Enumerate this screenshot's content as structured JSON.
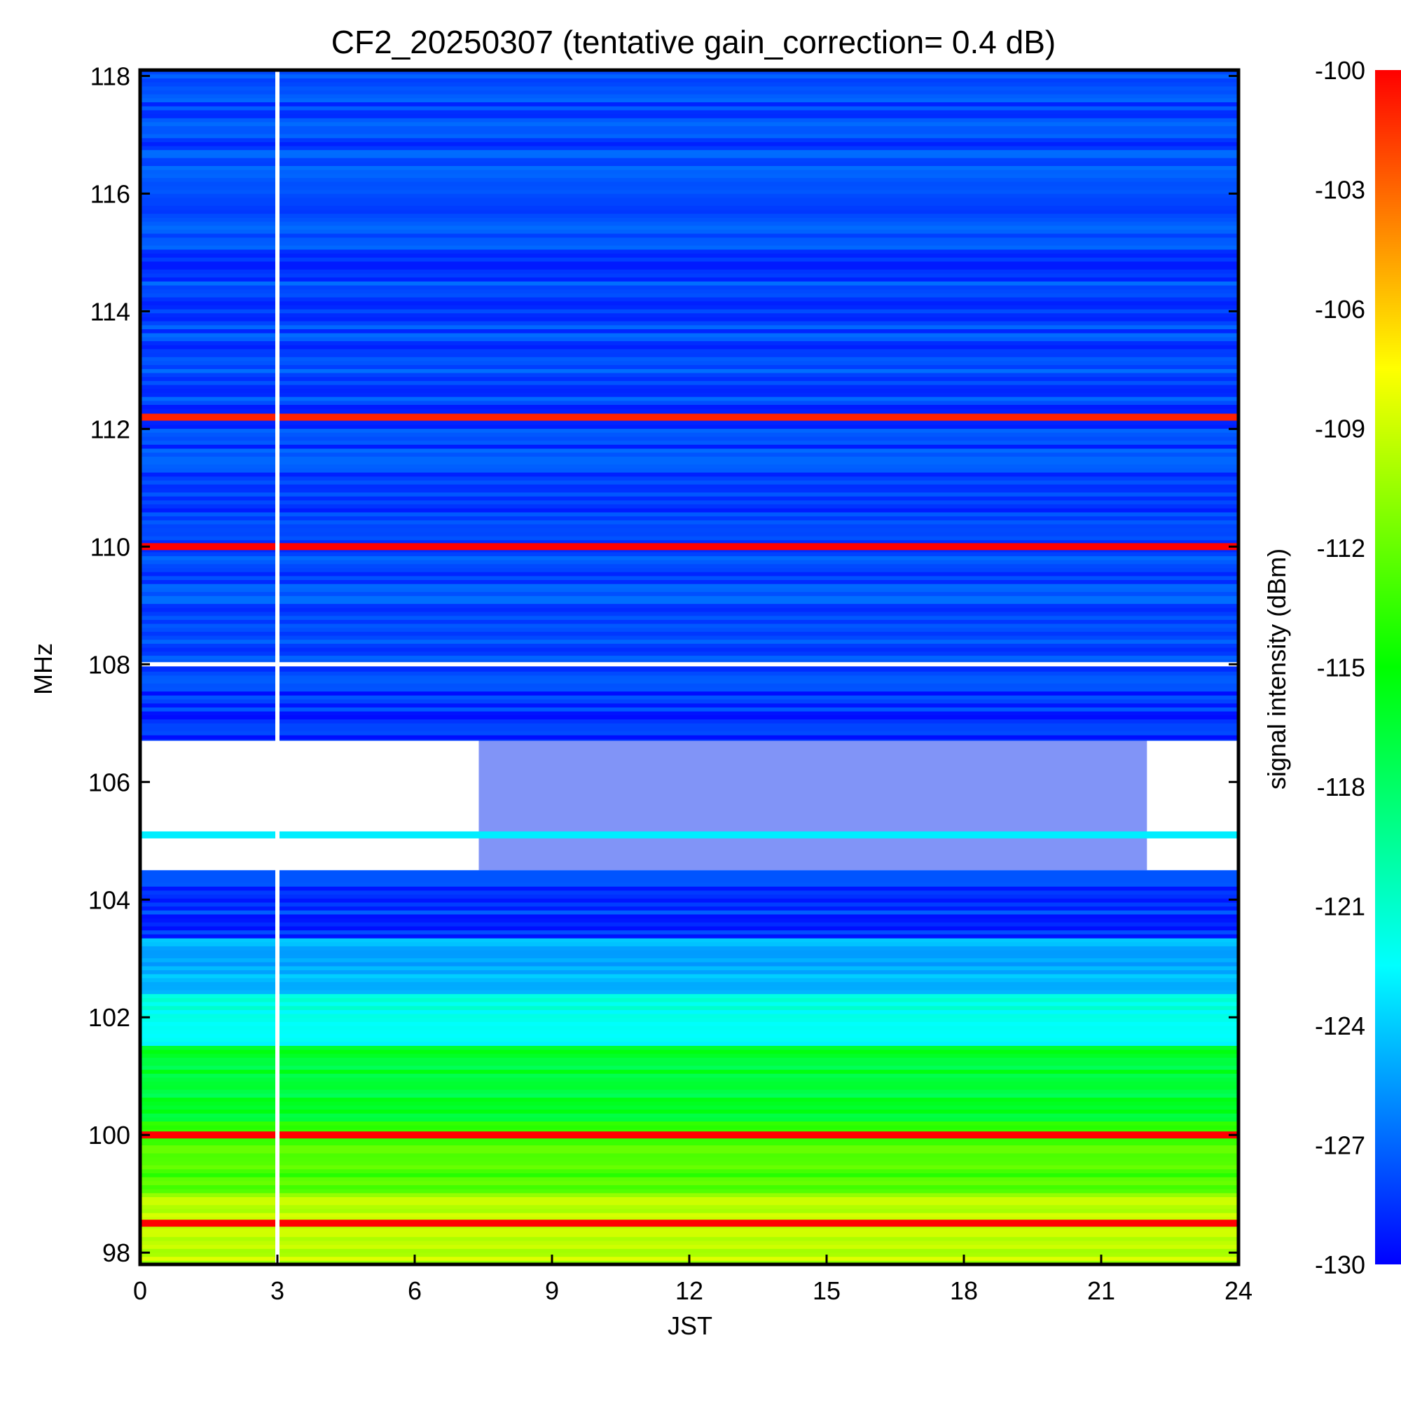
{
  "chart_data": {
    "type": "heatmap",
    "title": "CF2_20250307 (tentative gain_correction=  0.4 dB)",
    "xlabel": "JST",
    "ylabel": "MHz",
    "colorbar_label": "signal intensity (dBm)",
    "xlim": [
      0,
      24
    ],
    "ylim": [
      97.8,
      118.1
    ],
    "x_ticks": [
      0,
      3,
      6,
      9,
      12,
      15,
      18,
      21,
      24
    ],
    "y_ticks": [
      98,
      100,
      102,
      104,
      106,
      108,
      110,
      112,
      114,
      116,
      118
    ],
    "colorbar_ticks": [
      -100,
      -103,
      -106,
      -109,
      -112,
      -115,
      -118,
      -121,
      -124,
      -127,
      -130
    ],
    "color_range": [
      -130,
      -100
    ],
    "colormap": [
      "#0000ff",
      "#00ffff",
      "#00ff00",
      "#ffff00",
      "#ff0000"
    ],
    "strong_signals": [
      {
        "freq_mhz": 112.2,
        "dbm": -101
      },
      {
        "freq_mhz": 110.0,
        "dbm": -100
      },
      {
        "freq_mhz": 105.1,
        "dbm": -123
      },
      {
        "freq_mhz": 100.0,
        "dbm": -100
      },
      {
        "freq_mhz": 98.5,
        "dbm": -100
      }
    ]
  },
  "labels": {
    "title": "CF2_20250307 (tentative gain_correction=  0.4 dB)",
    "xlabel": "JST",
    "ylabel": "MHz",
    "colorbar_label": "signal intensity (dBm)"
  }
}
